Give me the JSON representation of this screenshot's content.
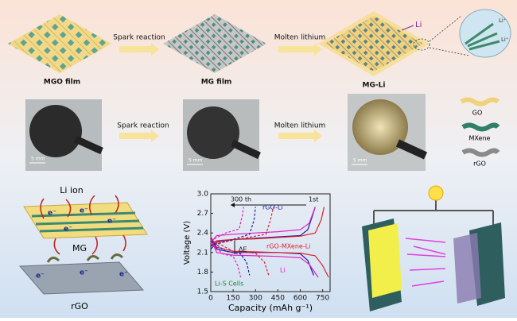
{
  "top_row": {
    "labels": [
      "MGO film",
      "MG film",
      "MG-Li"
    ],
    "arrows": [
      "Spark reaction",
      "Molten lithium"
    ],
    "li_label": "Li",
    "inset_labels": [
      "Li⁺",
      "Li⁺"
    ]
  },
  "photo_row": {
    "arrows": [
      "Spark reaction",
      "Molten lithium"
    ],
    "scale_bars": [
      "5 mm",
      "5 mm",
      "5 mm"
    ]
  },
  "legend": [
    "GO",
    "MXene",
    "rGO"
  ],
  "schematic": {
    "labels": [
      "Li ion",
      "MG",
      "rGO"
    ],
    "electron": "e⁻"
  },
  "chart_data": {
    "type": "line",
    "xlabel": "Capacity (mAh g⁻¹)",
    "ylabel": "Voltage (V)",
    "xlim": [
      0,
      800
    ],
    "xticks": [
      0,
      150,
      300,
      450,
      600,
      750
    ],
    "ylim": [
      1.5,
      3.0
    ],
    "yticks": [
      1.5,
      1.8,
      2.1,
      2.4,
      2.7,
      {
        "value": 3.0,
        "label": "3.0"
      }
    ],
    "annotations": [
      "300 th",
      "1st",
      "ΔE",
      "Li-S Cells"
    ],
    "series": [
      {
        "name": "rGO-Li",
        "color": "#1a1aa8",
        "x": [
          0,
          40,
          150,
          300,
          450,
          600,
          650,
          690,
          null,
          0,
          40,
          150,
          300,
          450,
          600,
          650,
          680,
          700
        ],
        "values": [
          2.32,
          2.15,
          2.1,
          2.1,
          2.1,
          2.08,
          1.98,
          1.75,
          null,
          2.15,
          2.26,
          2.3,
          2.32,
          2.34,
          2.36,
          2.45,
          2.65,
          2.8
        ]
      },
      {
        "name": "rGO-MXene-Li",
        "color": "#e0202a",
        "x": [
          0,
          40,
          150,
          300,
          450,
          600,
          700,
          750,
          790,
          null,
          0,
          40,
          150,
          300,
          450,
          600,
          700,
          740,
          760
        ],
        "values": [
          2.34,
          2.18,
          2.12,
          2.11,
          2.1,
          2.09,
          2.05,
          1.9,
          1.72,
          null,
          2.2,
          2.28,
          2.3,
          2.31,
          2.33,
          2.35,
          2.4,
          2.6,
          2.8
        ]
      },
      {
        "name": "Li",
        "color": "#e020c0",
        "x": [
          0,
          40,
          150,
          300,
          450,
          600,
          660,
          720,
          null,
          0,
          40,
          150,
          300,
          450,
          600,
          660,
          700
        ],
        "values": [
          2.3,
          2.1,
          2.06,
          2.05,
          2.04,
          2.02,
          1.92,
          1.72,
          null,
          2.25,
          2.36,
          2.38,
          2.4,
          2.42,
          2.45,
          2.55,
          2.8
        ]
      },
      {
        "color": "#1a1aa8",
        "dashed": true,
        "x": [
          0,
          100,
          200,
          240,
          260,
          null,
          0,
          150,
          260,
          290,
          300
        ],
        "values": [
          2.28,
          2.12,
          2.08,
          1.95,
          1.75,
          null,
          2.2,
          2.3,
          2.38,
          2.6,
          2.8
        ]
      },
      {
        "color": "#e0202a",
        "dashed": true,
        "x": [
          0,
          150,
          300,
          360,
          390,
          null,
          0,
          200,
          370,
          400,
          420
        ],
        "values": [
          2.3,
          2.12,
          2.09,
          1.95,
          1.74,
          null,
          2.22,
          2.31,
          2.38,
          2.6,
          2.8
        ]
      },
      {
        "color": "#e020c0",
        "dashed": true,
        "x": [
          0,
          80,
          150,
          180,
          200,
          null,
          0,
          100,
          190,
          210,
          220
        ],
        "values": [
          2.26,
          2.08,
          2.04,
          1.9,
          1.72,
          null,
          2.28,
          2.4,
          2.46,
          2.65,
          2.8
        ]
      }
    ]
  }
}
